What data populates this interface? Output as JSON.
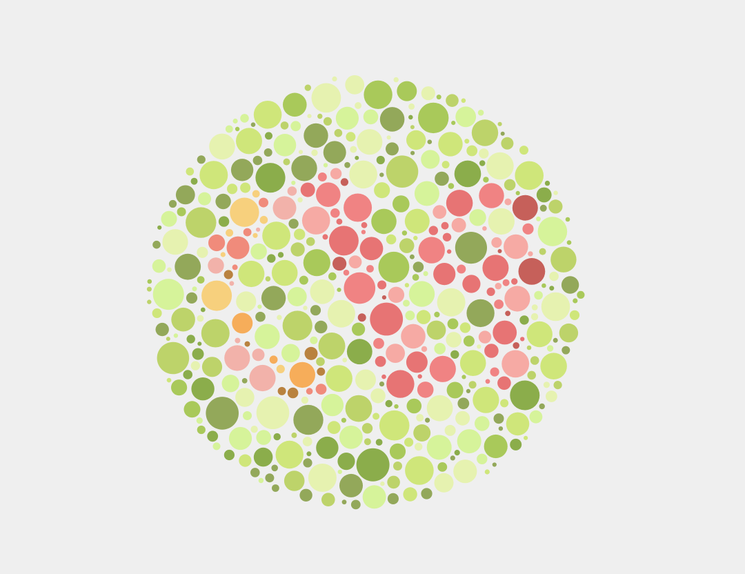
{
  "page": {
    "background": "#efefef"
  },
  "plate": {
    "kind": "color-vision-test-plate",
    "palette": {
      "background_dots": [
        "#8bad4b",
        "#a9c95a",
        "#bdd36a",
        "#cfe67a",
        "#93a85a",
        "#d6f39a",
        "#e6f2b0"
      ],
      "figure_left_dots": [
        "#b9823f",
        "#f6ad5a",
        "#f7d07d",
        "#f08b7b",
        "#f2b2aa"
      ],
      "figure_right_dots": [
        "#c6605a",
        "#f08383",
        "#f6aaa4",
        "#e77474"
      ]
    }
  }
}
